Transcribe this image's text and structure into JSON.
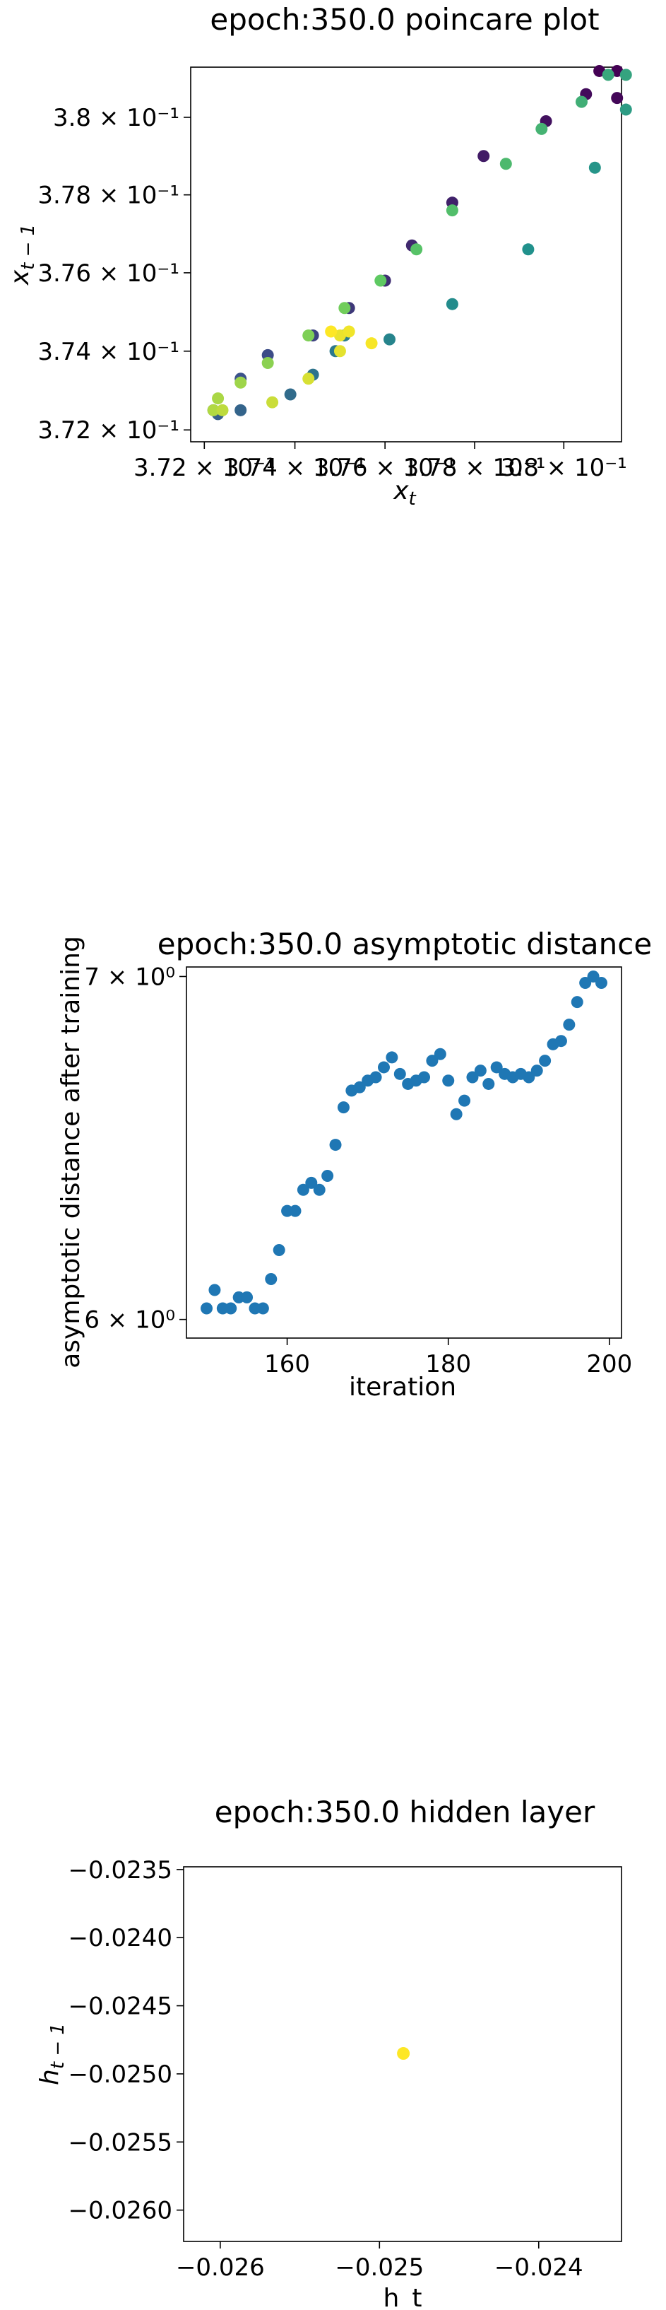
{
  "chart_data": [
    {
      "type": "scatter",
      "title": "epoch:350.0 poincare plot",
      "xlabel": "x",
      "xlabel_sub": "t",
      "ylabel": "x",
      "ylabel_sub": "t − 1",
      "xscale": "log",
      "yscale": "log",
      "xlim": [
        0.3717,
        0.3813
      ],
      "ylim": [
        0.3717,
        0.3813
      ],
      "xticks": [
        {
          "value": 0.372,
          "label": "3.72 × 10⁻¹"
        },
        {
          "value": 0.374,
          "label": "3.74 × 10⁻¹"
        },
        {
          "value": 0.376,
          "label": "3.76 × 10⁻¹"
        },
        {
          "value": 0.378,
          "label": "3.78 × 10⁻¹"
        },
        {
          "value": 0.38,
          "label": "3.8 × 10⁻¹"
        }
      ],
      "yticks": [
        {
          "value": 0.372,
          "label": "3.72 × 10⁻¹"
        },
        {
          "value": 0.374,
          "label": "3.74 × 10⁻¹"
        },
        {
          "value": 0.376,
          "label": "3.76 × 10⁻¹"
        },
        {
          "value": 0.378,
          "label": "3.78 × 10⁻¹"
        },
        {
          "value": 0.38,
          "label": "3.8 × 10⁻¹"
        }
      ],
      "colormap": "viridis",
      "points": [
        {
          "x": 0.3808,
          "y": 0.3812,
          "c": 0.0
        },
        {
          "x": 0.3812,
          "y": 0.3812,
          "c": 0.0
        },
        {
          "x": 0.3812,
          "y": 0.3805,
          "c": 0.02
        },
        {
          "x": 0.3805,
          "y": 0.3806,
          "c": 0.03
        },
        {
          "x": 0.3796,
          "y": 0.3799,
          "c": 0.05
        },
        {
          "x": 0.3782,
          "y": 0.379,
          "c": 0.08
        },
        {
          "x": 0.3775,
          "y": 0.3778,
          "c": 0.1
        },
        {
          "x": 0.3766,
          "y": 0.3767,
          "c": 0.12
        },
        {
          "x": 0.376,
          "y": 0.3758,
          "c": 0.14
        },
        {
          "x": 0.3752,
          "y": 0.3751,
          "c": 0.17
        },
        {
          "x": 0.3744,
          "y": 0.3744,
          "c": 0.2
        },
        {
          "x": 0.3734,
          "y": 0.3739,
          "c": 0.23
        },
        {
          "x": 0.3728,
          "y": 0.3733,
          "c": 0.25
        },
        {
          "x": 0.3722,
          "y": 0.3725,
          "c": 0.28
        },
        {
          "x": 0.3723,
          "y": 0.3724,
          "c": 0.3
        },
        {
          "x": 0.3728,
          "y": 0.3725,
          "c": 0.32
        },
        {
          "x": 0.3739,
          "y": 0.3729,
          "c": 0.35
        },
        {
          "x": 0.3744,
          "y": 0.3734,
          "c": 0.38
        },
        {
          "x": 0.3749,
          "y": 0.374,
          "c": 0.4
        },
        {
          "x": 0.3751,
          "y": 0.3744,
          "c": 0.42
        },
        {
          "x": 0.3761,
          "y": 0.3743,
          "c": 0.45
        },
        {
          "x": 0.3775,
          "y": 0.3752,
          "c": 0.48
        },
        {
          "x": 0.3792,
          "y": 0.3766,
          "c": 0.5
        },
        {
          "x": 0.3807,
          "y": 0.3787,
          "c": 0.52
        },
        {
          "x": 0.3814,
          "y": 0.3802,
          "c": 0.55
        },
        {
          "x": 0.3814,
          "y": 0.3811,
          "c": 0.58
        },
        {
          "x": 0.381,
          "y": 0.3811,
          "c": 0.6
        },
        {
          "x": 0.3804,
          "y": 0.3804,
          "c": 0.63
        },
        {
          "x": 0.3795,
          "y": 0.3797,
          "c": 0.65
        },
        {
          "x": 0.3787,
          "y": 0.3788,
          "c": 0.68
        },
        {
          "x": 0.3775,
          "y": 0.3776,
          "c": 0.7
        },
        {
          "x": 0.3767,
          "y": 0.3766,
          "c": 0.72
        },
        {
          "x": 0.3759,
          "y": 0.3758,
          "c": 0.75
        },
        {
          "x": 0.3751,
          "y": 0.3751,
          "c": 0.78
        },
        {
          "x": 0.3743,
          "y": 0.3744,
          "c": 0.8
        },
        {
          "x": 0.3734,
          "y": 0.3737,
          "c": 0.82
        },
        {
          "x": 0.3728,
          "y": 0.3732,
          "c": 0.85
        },
        {
          "x": 0.3723,
          "y": 0.3728,
          "c": 0.87
        },
        {
          "x": 0.3722,
          "y": 0.3725,
          "c": 0.88
        },
        {
          "x": 0.3724,
          "y": 0.3725,
          "c": 0.9
        },
        {
          "x": 0.3735,
          "y": 0.3727,
          "c": 0.92
        },
        {
          "x": 0.3743,
          "y": 0.3733,
          "c": 0.94
        },
        {
          "x": 0.375,
          "y": 0.374,
          "c": 0.96
        },
        {
          "x": 0.375,
          "y": 0.3744,
          "c": 0.97
        },
        {
          "x": 0.3752,
          "y": 0.3745,
          "c": 0.98
        },
        {
          "x": 0.3757,
          "y": 0.3742,
          "c": 0.99
        },
        {
          "x": 0.3748,
          "y": 0.3745,
          "c": 1.0
        }
      ]
    },
    {
      "type": "scatter",
      "title": "epoch:350.0 asymptotic distance",
      "xlabel": "iteration",
      "ylabel": "asymptotic distance after training",
      "yscale": "log",
      "xlim": [
        147.5,
        201.5
      ],
      "ylim": [
        5.95,
        7.03
      ],
      "xticks": [
        {
          "value": 160,
          "label": "160"
        },
        {
          "value": 180,
          "label": "180"
        },
        {
          "value": 200,
          "label": "200"
        }
      ],
      "yticks": [
        {
          "value": 6,
          "label": "6 × 10⁰"
        },
        {
          "value": 7,
          "label": "7 × 10⁰"
        }
      ],
      "color": "#1f77b4",
      "x": [
        150,
        151,
        152,
        153,
        154,
        155,
        156,
        157,
        158,
        159,
        160,
        161,
        162,
        163,
        164,
        165,
        166,
        167,
        168,
        169,
        170,
        171,
        172,
        173,
        174,
        175,
        176,
        177,
        178,
        179,
        180,
        181,
        182,
        183,
        184,
        185,
        186,
        187,
        188,
        189,
        190,
        191,
        192,
        193,
        194,
        195,
        196,
        197,
        198,
        199
      ],
      "y": [
        6.03,
        6.08,
        6.03,
        6.03,
        6.06,
        6.06,
        6.03,
        6.03,
        6.11,
        6.19,
        6.3,
        6.3,
        6.36,
        6.38,
        6.36,
        6.4,
        6.49,
        6.6,
        6.65,
        6.66,
        6.68,
        6.69,
        6.72,
        6.75,
        6.7,
        6.67,
        6.68,
        6.69,
        6.74,
        6.76,
        6.68,
        6.58,
        6.62,
        6.69,
        6.71,
        6.67,
        6.72,
        6.7,
        6.69,
        6.7,
        6.69,
        6.71,
        6.74,
        6.79,
        6.8,
        6.85,
        6.92,
        6.98,
        7.0,
        6.98
      ]
    },
    {
      "type": "scatter",
      "title": "epoch:350.0 hidden layer",
      "xlabel": "h_t",
      "ylabel": "h",
      "ylabel_sub": "t − 1",
      "xlim": [
        -0.02623,
        -0.02348
      ],
      "ylim": [
        -0.02623,
        -0.02348
      ],
      "xticks": [
        {
          "value": -0.026,
          "label": "−0.026"
        },
        {
          "value": -0.025,
          "label": "−0.025"
        },
        {
          "value": -0.024,
          "label": "−0.024"
        }
      ],
      "yticks": [
        {
          "value": -0.0235,
          "label": "−0.0235"
        },
        {
          "value": -0.024,
          "label": "−0.0240"
        },
        {
          "value": -0.0245,
          "label": "−0.0245"
        },
        {
          "value": -0.025,
          "label": "−0.0250"
        },
        {
          "value": -0.0255,
          "label": "−0.0255"
        },
        {
          "value": -0.026,
          "label": "−0.0260"
        }
      ],
      "color": "#fde725",
      "points": [
        {
          "x": -0.02485,
          "y": -0.02485
        }
      ]
    }
  ]
}
